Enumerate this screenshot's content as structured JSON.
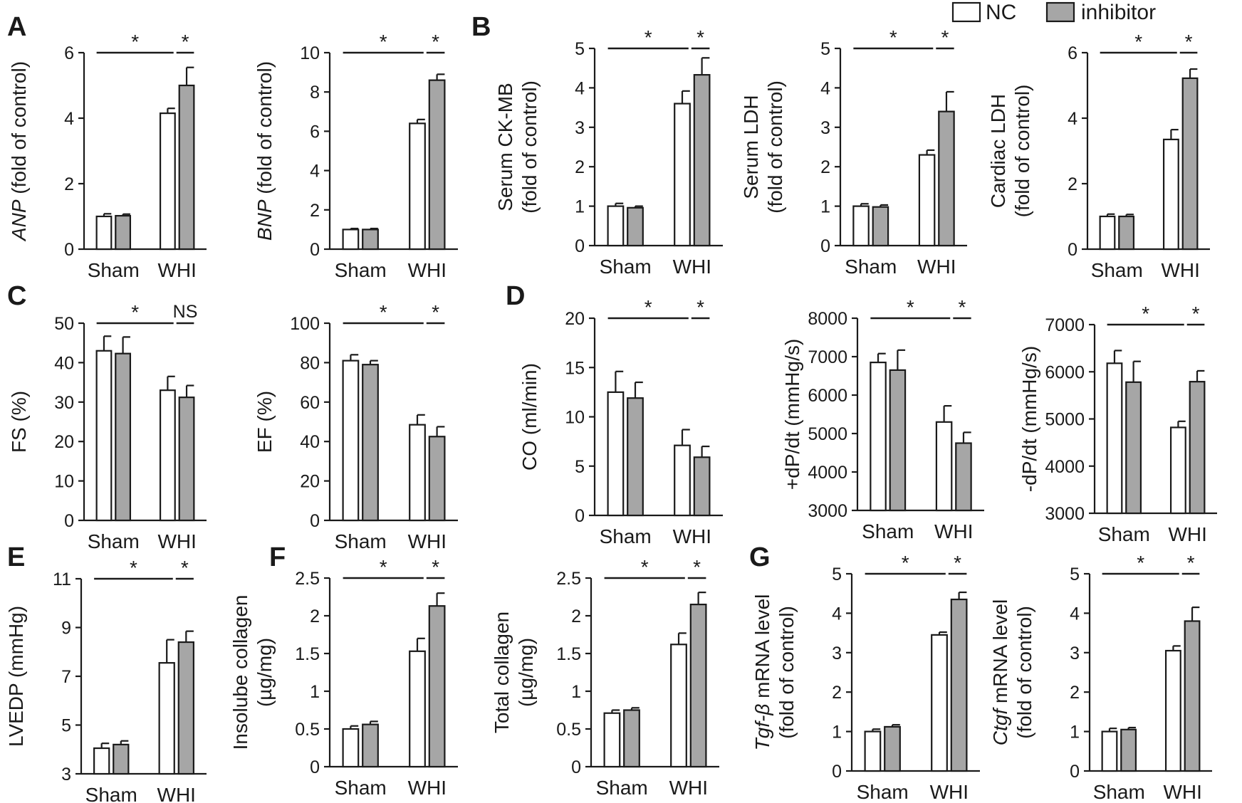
{
  "legend": {
    "nc_label": "NC",
    "inhibitor_label": "inhibitor"
  },
  "colors": {
    "nc": "#ffffff",
    "inhibitor": "#a6a6a6",
    "stroke": "#1a1a1a"
  },
  "chart_data": [
    {
      "id": "anp",
      "panel": "A",
      "type": "bar",
      "title": "",
      "ylabel": [
        [
          {
            "t": "ANP",
            "i": true
          },
          {
            "t": " (fold of control)"
          }
        ]
      ],
      "ylim": [
        0,
        6
      ],
      "yticks": [
        0,
        2,
        4,
        6
      ],
      "categories": [
        "Sham",
        "WHI"
      ],
      "series": [
        {
          "name": "NC",
          "values": [
            1.0,
            4.15
          ],
          "errors": [
            0.08,
            0.15
          ]
        },
        {
          "name": "inhibitor",
          "values": [
            1.02,
            5.0
          ],
          "errors": [
            0.05,
            0.55
          ]
        }
      ],
      "significance": [
        {
          "span": "sham-whi_nc",
          "label": "*"
        },
        {
          "span": "whi",
          "label": "*"
        }
      ]
    },
    {
      "id": "bnp",
      "type": "bar",
      "title": "",
      "ylabel": [
        [
          {
            "t": "BNP",
            "i": true
          },
          {
            "t": " (fold of control)"
          }
        ]
      ],
      "ylim": [
        0,
        10
      ],
      "yticks": [
        0,
        2,
        4,
        6,
        8,
        10
      ],
      "categories": [
        "Sham",
        "WHI"
      ],
      "series": [
        {
          "name": "NC",
          "values": [
            1.0,
            6.4
          ],
          "errors": [
            0.05,
            0.2
          ]
        },
        {
          "name": "inhibitor",
          "values": [
            1.0,
            8.6
          ],
          "errors": [
            0.05,
            0.3
          ]
        }
      ],
      "significance": [
        {
          "span": "sham-whi_nc",
          "label": "*"
        },
        {
          "span": "whi",
          "label": "*"
        }
      ]
    },
    {
      "id": "ckmb",
      "panel": "B",
      "type": "bar",
      "title": "",
      "ylabel": [
        [
          {
            "t": "Serum CK-MB"
          }
        ],
        [
          {
            "t": "(fold of control)"
          }
        ]
      ],
      "ylim": [
        0,
        5
      ],
      "yticks": [
        0,
        1,
        2,
        3,
        4,
        5
      ],
      "categories": [
        "Sham",
        "WHI"
      ],
      "series": [
        {
          "name": "NC",
          "values": [
            1.0,
            3.6
          ],
          "errors": [
            0.07,
            0.32
          ]
        },
        {
          "name": "inhibitor",
          "values": [
            0.96,
            4.33
          ],
          "errors": [
            0.04,
            0.43
          ]
        }
      ],
      "significance": [
        {
          "span": "sham-whi_nc",
          "label": "*"
        },
        {
          "span": "whi",
          "label": "*"
        }
      ]
    },
    {
      "id": "serum-ldh",
      "type": "bar",
      "title": "",
      "ylabel": [
        [
          {
            "t": "Serum LDH"
          }
        ],
        [
          {
            "t": "(fold of control)"
          }
        ]
      ],
      "ylim": [
        0,
        5
      ],
      "yticks": [
        0,
        1,
        2,
        3,
        4,
        5
      ],
      "categories": [
        "Sham",
        "WHI"
      ],
      "series": [
        {
          "name": "NC",
          "values": [
            1.0,
            2.3
          ],
          "errors": [
            0.06,
            0.12
          ]
        },
        {
          "name": "inhibitor",
          "values": [
            0.98,
            3.4
          ],
          "errors": [
            0.05,
            0.5
          ]
        }
      ],
      "significance": [
        {
          "span": "sham-whi_nc",
          "label": "*"
        },
        {
          "span": "whi",
          "label": "*"
        }
      ]
    },
    {
      "id": "cardiac-ldh",
      "type": "bar",
      "title": "",
      "ylabel": [
        [
          {
            "t": "Cardiac LDH"
          }
        ],
        [
          {
            "t": "(fold of control)"
          }
        ]
      ],
      "ylim": [
        0,
        6
      ],
      "yticks": [
        0,
        2,
        4,
        6
      ],
      "categories": [
        "Sham",
        "WHI"
      ],
      "series": [
        {
          "name": "NC",
          "values": [
            1.0,
            3.35
          ],
          "errors": [
            0.07,
            0.3
          ]
        },
        {
          "name": "inhibitor",
          "values": [
            1.0,
            5.22
          ],
          "errors": [
            0.06,
            0.28
          ]
        }
      ],
      "significance": [
        {
          "span": "sham-whi_nc",
          "label": "*"
        },
        {
          "span": "whi",
          "label": "*"
        }
      ]
    },
    {
      "id": "fs",
      "panel": "C",
      "type": "bar",
      "title": "",
      "ylabel": [
        [
          {
            "t": "FS (%)"
          }
        ]
      ],
      "ylim": [
        0,
        50
      ],
      "yticks": [
        0,
        10,
        20,
        30,
        40,
        50
      ],
      "categories": [
        "Sham",
        "WHI"
      ],
      "series": [
        {
          "name": "NC",
          "values": [
            43,
            33
          ],
          "errors": [
            3.7,
            3.5
          ]
        },
        {
          "name": "inhibitor",
          "values": [
            42.3,
            31.2
          ],
          "errors": [
            4.2,
            3
          ]
        }
      ],
      "significance": [
        {
          "span": "sham-whi_nc",
          "label": "*"
        },
        {
          "span": "whi",
          "label": "NS"
        }
      ]
    },
    {
      "id": "ef",
      "type": "bar",
      "title": "",
      "ylabel": [
        [
          {
            "t": "EF (%)"
          }
        ]
      ],
      "ylim": [
        0,
        100
      ],
      "yticks": [
        0,
        20,
        40,
        60,
        80,
        100
      ],
      "categories": [
        "Sham",
        "WHI"
      ],
      "series": [
        {
          "name": "NC",
          "values": [
            81,
            48.5
          ],
          "errors": [
            3,
            5
          ]
        },
        {
          "name": "inhibitor",
          "values": [
            79,
            42.5
          ],
          "errors": [
            2,
            5
          ]
        }
      ],
      "significance": [
        {
          "span": "sham-whi_nc",
          "label": "*"
        },
        {
          "span": "whi",
          "label": "*"
        }
      ]
    },
    {
      "id": "co",
      "panel": "D",
      "type": "bar",
      "title": "",
      "ylabel": [
        [
          {
            "t": "CO (ml/min)"
          }
        ]
      ],
      "ylim": [
        0,
        20
      ],
      "yticks": [
        0,
        5,
        10,
        15,
        20
      ],
      "categories": [
        "Sham",
        "WHI"
      ],
      "series": [
        {
          "name": "NC",
          "values": [
            12.5,
            7.1
          ],
          "errors": [
            2.1,
            1.6
          ]
        },
        {
          "name": "inhibitor",
          "values": [
            11.9,
            5.9
          ],
          "errors": [
            1.6,
            1.1
          ]
        }
      ],
      "significance": [
        {
          "span": "sham-whi_nc",
          "label": "*"
        },
        {
          "span": "whi",
          "label": "*"
        }
      ]
    },
    {
      "id": "dpdt-max",
      "type": "bar",
      "title": "",
      "ylabel": [
        [
          {
            "t": "+dP/dt (mmHg/s)"
          }
        ]
      ],
      "ylim": [
        3000,
        8000
      ],
      "yticks": [
        3000,
        4000,
        5000,
        6000,
        7000,
        8000
      ],
      "categories": [
        "Sham",
        "WHI"
      ],
      "series": [
        {
          "name": "NC",
          "values": [
            6850,
            5300
          ],
          "errors": [
            230,
            420
          ]
        },
        {
          "name": "inhibitor",
          "values": [
            6650,
            4750
          ],
          "errors": [
            520,
            280
          ]
        }
      ],
      "significance": [
        {
          "span": "sham-whi_nc",
          "label": "*"
        },
        {
          "span": "whi",
          "label": "*"
        }
      ]
    },
    {
      "id": "dpdt-min",
      "type": "bar",
      "title": "",
      "ylabel": [
        [
          {
            "t": "-dP/dt (mmHg/s)"
          }
        ]
      ],
      "ylim": [
        3000,
        7000
      ],
      "yticks": [
        3000,
        4000,
        5000,
        6000,
        7000
      ],
      "categories": [
        "Sham",
        "WHI"
      ],
      "series": [
        {
          "name": "NC",
          "values": [
            6180,
            4820
          ],
          "errors": [
            270,
            130
          ]
        },
        {
          "name": "inhibitor",
          "values": [
            5780,
            5790
          ],
          "errors": [
            440,
            230
          ]
        }
      ],
      "significance": [
        {
          "span": "sham-whi_nc",
          "label": "*"
        },
        {
          "span": "whi",
          "label": "*"
        }
      ]
    },
    {
      "id": "lvedp",
      "panel": "E",
      "type": "bar",
      "title": "",
      "ylabel": [
        [
          {
            "t": "LVEDP (mmHg)"
          }
        ]
      ],
      "ylim": [
        3,
        11
      ],
      "yticks": [
        3,
        5,
        7,
        9,
        11
      ],
      "categories": [
        "Sham",
        "WHI"
      ],
      "series": [
        {
          "name": "NC",
          "values": [
            4.05,
            7.55
          ],
          "errors": [
            0.2,
            0.95
          ]
        },
        {
          "name": "inhibitor",
          "values": [
            4.2,
            8.4
          ],
          "errors": [
            0.15,
            0.45
          ]
        }
      ],
      "significance": [
        {
          "span": "sham-whi_nc",
          "label": "*"
        },
        {
          "span": "whi",
          "label": "*"
        }
      ]
    },
    {
      "id": "insol-collagen",
      "panel": "F",
      "type": "bar",
      "title": "",
      "ylabel": [
        [
          {
            "t": "Insolube collagen"
          }
        ],
        [
          {
            "t": "(µg/mg)"
          }
        ]
      ],
      "ylim": [
        0,
        2.5
      ],
      "yticks": [
        0,
        0.5,
        1,
        1.5,
        2,
        2.5
      ],
      "ytick_labels": [
        "0",
        "0.5",
        "1",
        "1.5",
        "2",
        "2.5"
      ],
      "categories": [
        "Sham",
        "WHI"
      ],
      "series": [
        {
          "name": "NC",
          "values": [
            0.5,
            1.53
          ],
          "errors": [
            0.04,
            0.17
          ]
        },
        {
          "name": "inhibitor",
          "values": [
            0.56,
            2.13
          ],
          "errors": [
            0.04,
            0.17
          ]
        }
      ],
      "significance": [
        {
          "span": "sham-whi_nc",
          "label": "*"
        },
        {
          "span": "whi",
          "label": "*"
        }
      ]
    },
    {
      "id": "total-collagen",
      "type": "bar",
      "title": "",
      "ylabel": [
        [
          {
            "t": "Total collagen"
          }
        ],
        [
          {
            "t": "(µg/mg)"
          }
        ]
      ],
      "ylim": [
        0,
        2.5
      ],
      "yticks": [
        0,
        0.5,
        1,
        1.5,
        2,
        2.5
      ],
      "ytick_labels": [
        "0",
        "0.5",
        "1",
        "1.5",
        "2",
        "2.5"
      ],
      "categories": [
        "Sham",
        "WHI"
      ],
      "series": [
        {
          "name": "NC",
          "values": [
            0.71,
            1.62
          ],
          "errors": [
            0.04,
            0.15
          ]
        },
        {
          "name": "inhibitor",
          "values": [
            0.75,
            2.15
          ],
          "errors": [
            0.03,
            0.16
          ]
        }
      ],
      "significance": [
        {
          "span": "sham-whi_nc",
          "label": "*"
        },
        {
          "span": "whi",
          "label": "*"
        }
      ]
    },
    {
      "id": "tgfb",
      "panel": "G",
      "type": "bar",
      "title": "",
      "ylabel": [
        [
          {
            "t": "Tgf-β",
            "i": true
          },
          {
            "t": " mRNA level"
          }
        ],
        [
          {
            "t": "(fold of control)"
          }
        ]
      ],
      "ylim": [
        0,
        5
      ],
      "yticks": [
        0,
        1,
        2,
        3,
        4,
        5
      ],
      "categories": [
        "Sham",
        "WHI"
      ],
      "series": [
        {
          "name": "NC",
          "values": [
            1.0,
            3.45
          ],
          "errors": [
            0.06,
            0.07
          ]
        },
        {
          "name": "inhibitor",
          "values": [
            1.12,
            4.35
          ],
          "errors": [
            0.05,
            0.18
          ]
        }
      ],
      "significance": [
        {
          "span": "sham-whi_nc",
          "label": "*"
        },
        {
          "span": "whi",
          "label": "*"
        }
      ]
    },
    {
      "id": "ctgf",
      "type": "bar",
      "title": "",
      "ylabel": [
        [
          {
            "t": "Ctgf",
            "i": true
          },
          {
            "t": " mRNA level"
          }
        ],
        [
          {
            "t": "(fold of control)"
          }
        ]
      ],
      "ylim": [
        0,
        5
      ],
      "yticks": [
        0,
        1,
        2,
        3,
        4,
        5
      ],
      "categories": [
        "Sham",
        "WHI"
      ],
      "series": [
        {
          "name": "NC",
          "values": [
            1.0,
            3.05
          ],
          "errors": [
            0.08,
            0.12
          ]
        },
        {
          "name": "inhibitor",
          "values": [
            1.05,
            3.8
          ],
          "errors": [
            0.05,
            0.35
          ]
        }
      ],
      "significance": [
        {
          "span": "sham-whi_nc",
          "label": "*"
        },
        {
          "span": "whi",
          "label": "*"
        }
      ]
    }
  ]
}
